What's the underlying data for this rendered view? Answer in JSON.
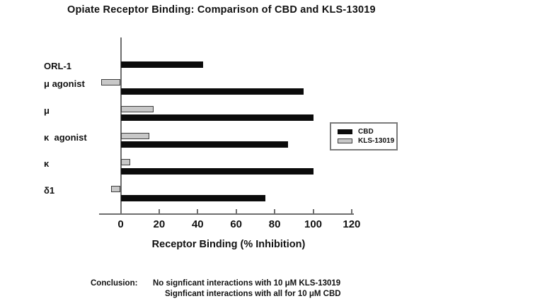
{
  "title": "Opiate Receptor Binding: Comparison of CBD and KLS-13019",
  "chart_data": {
    "type": "bar",
    "orientation": "horizontal",
    "title": "Opiate Receptor Binding: Comparison of CBD and KLS-13019",
    "categories": [
      "ORL-1",
      "μ agonist",
      "μ",
      "κ  agonist",
      "κ",
      "δ1"
    ],
    "series": [
      {
        "name": "CBD",
        "color": "#0b0b0b",
        "values": [
          43,
          95,
          100,
          87,
          100,
          75
        ]
      },
      {
        "name": "KLS-13019",
        "color": "#c8c8c8",
        "values": [
          0,
          -10,
          17,
          15,
          5,
          -5
        ]
      }
    ],
    "xlabel": "Receptor Binding (% Inhibition)",
    "ylabel": "",
    "xticks": [
      0,
      20,
      40,
      60,
      80,
      100,
      120
    ],
    "xlim": [
      -12,
      132
    ],
    "grid": false,
    "legend_position": "right"
  },
  "legend": {
    "items": [
      {
        "label": "CBD",
        "color": "#0b0b0b"
      },
      {
        "label": "KLS-13019",
        "color": "#c8c8c8"
      }
    ]
  },
  "conclusion": {
    "label": "Conclusion:",
    "lines": [
      "No signficant interactions with 10 μM KLS-13019",
      "Signficant interactions with all for 10 μM CBD"
    ]
  }
}
